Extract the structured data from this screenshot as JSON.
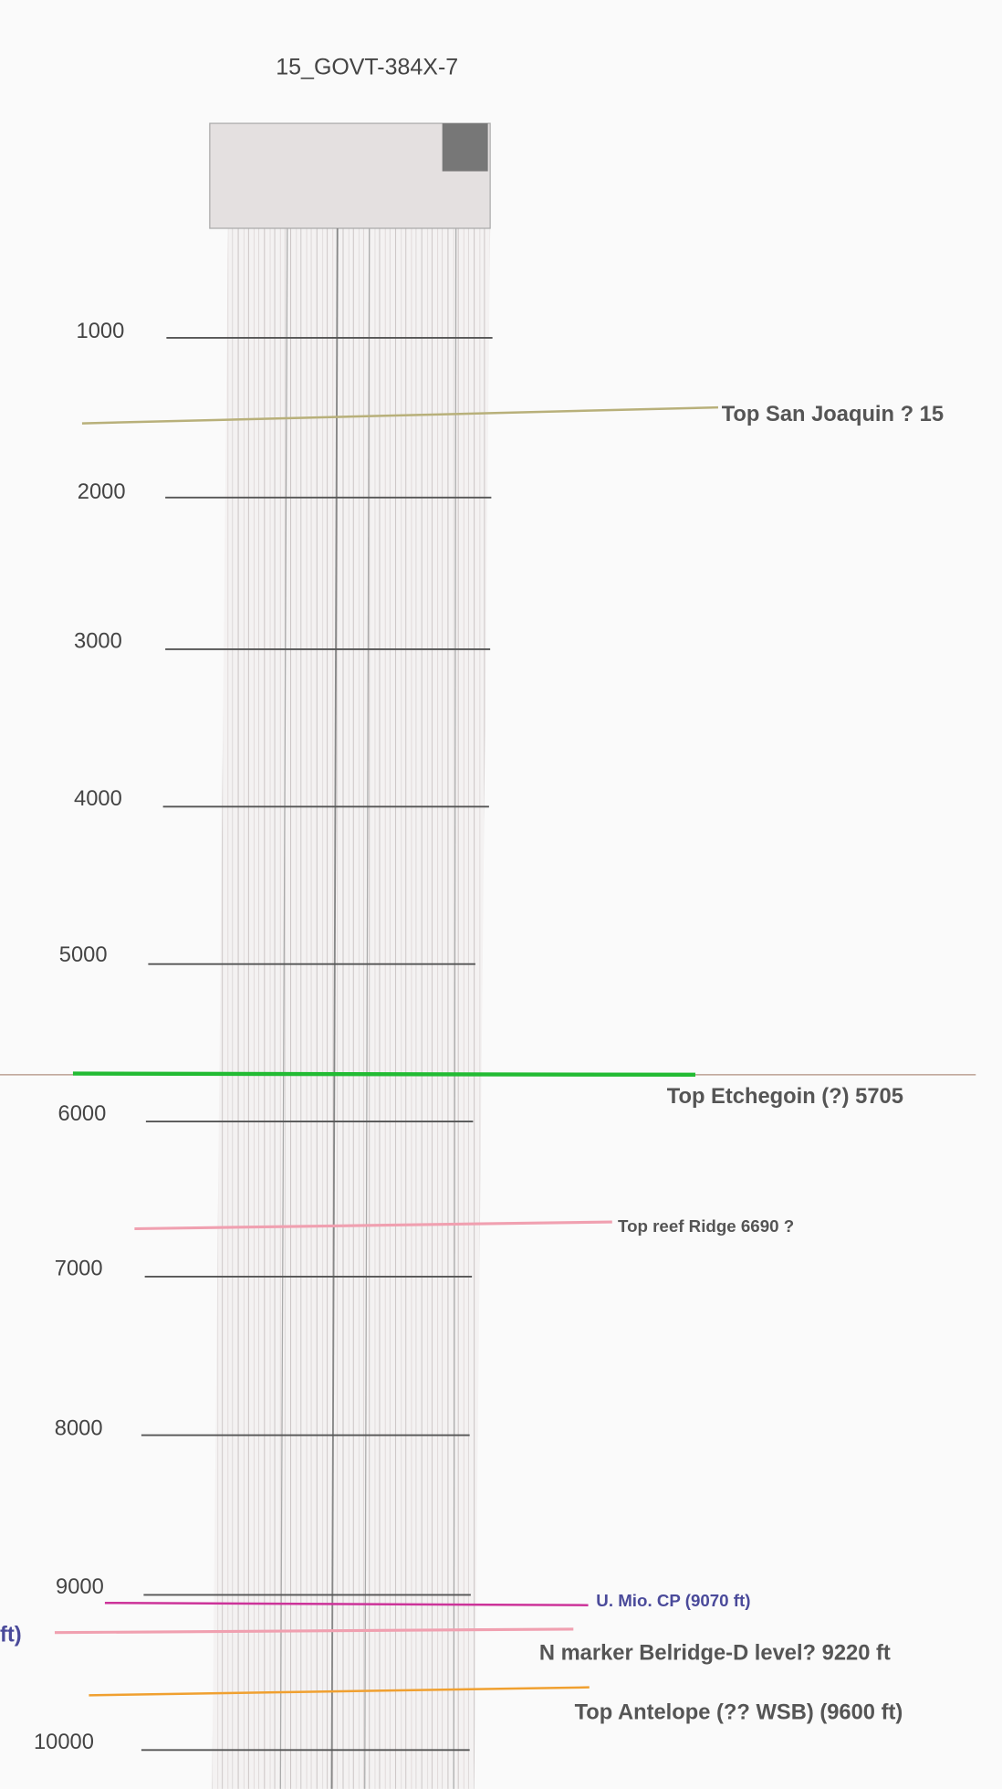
{
  "title": "15_GOVT-384X-7",
  "depth_labels": [
    "1000",
    "2000",
    "3000",
    "4000",
    "5000",
    "6000",
    "7000",
    "8000",
    "9000",
    "10000"
  ],
  "tops": [
    {
      "label": "Top San Joaquin ? 15"
    },
    {
      "label": "Top Etchegoin (?) 5705"
    },
    {
      "label": "Top reef Ridge 6690 ?"
    },
    {
      "label": "U. Mio. CP (9070 ft)"
    },
    {
      "label": "N marker Belridge-D level? 9220 ft"
    },
    {
      "label": "Top Antelope (?? WSB) (9600 ft)"
    }
  ],
  "cut_label": "ft)"
}
